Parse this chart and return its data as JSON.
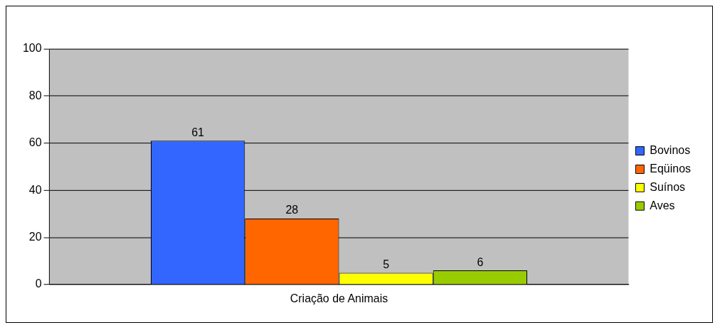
{
  "chart_data": {
    "type": "bar",
    "categories": [
      "Criação de Animais"
    ],
    "series": [
      {
        "name": "Bovinos",
        "color": "#3366ff",
        "values": [
          61
        ]
      },
      {
        "name": "Eqüinos",
        "color": "#ff6600",
        "values": [
          28
        ]
      },
      {
        "name": "Suínos",
        "color": "#ffff00",
        "values": [
          5
        ]
      },
      {
        "name": "Aves",
        "color": "#99cc00",
        "values": [
          6
        ]
      }
    ],
    "ylim": [
      0,
      100
    ],
    "yticks": [
      0,
      20,
      40,
      60,
      80,
      100
    ],
    "grid": "y",
    "legend": "right",
    "data_labels": true
  }
}
